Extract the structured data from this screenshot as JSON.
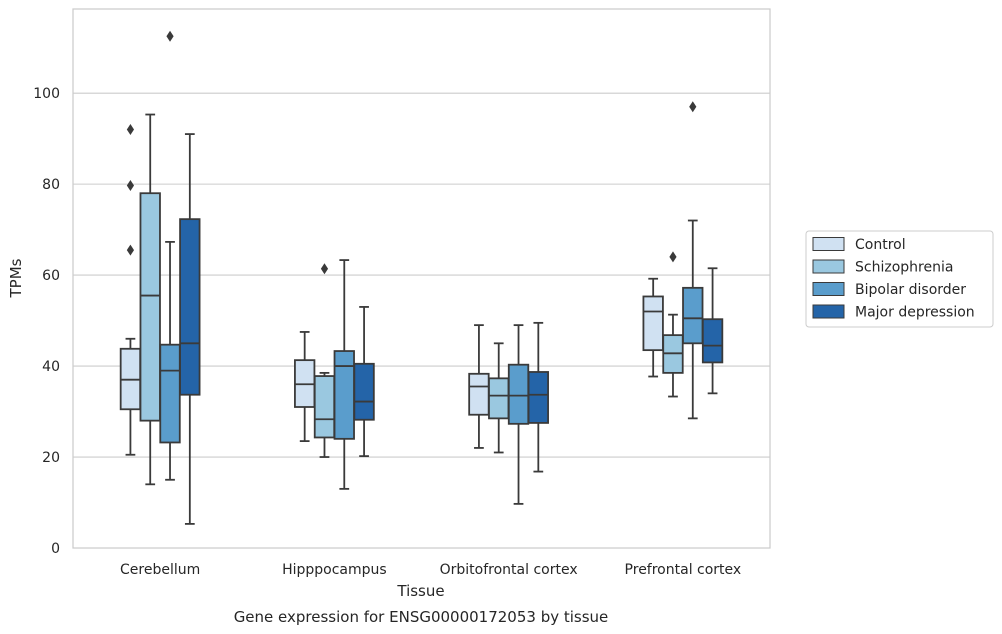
{
  "chart_data": {
    "type": "box",
    "categories": [
      "Cerebellum",
      "Hipppocampus",
      "Orbitofrontal cortex",
      "Prefrontal cortex"
    ],
    "xlabel": "Tissue",
    "ylabel": "TPMs",
    "caption": "Gene expression for ENSG00000172053 by tissue",
    "ylim": [
      0,
      118.5
    ],
    "yticks": [
      0,
      20,
      40,
      60,
      80,
      100
    ],
    "grid": "horizontal",
    "legend_position": "right",
    "series": [
      {
        "name": "Control",
        "color": "#d0e1f2",
        "boxes": [
          {
            "whisker_low": 20.5,
            "q1": 30.5,
            "median": 37.0,
            "q3": 43.8,
            "whisker_high": 46.0,
            "outliers": [
              65.5,
              79.7,
              92.0
            ]
          },
          {
            "whisker_low": 23.5,
            "q1": 31.0,
            "median": 36.0,
            "q3": 41.3,
            "whisker_high": 47.5,
            "outliers": []
          },
          {
            "whisker_low": 22.0,
            "q1": 29.3,
            "median": 35.5,
            "q3": 38.3,
            "whisker_high": 49.0,
            "outliers": []
          },
          {
            "whisker_low": 37.7,
            "q1": 43.5,
            "median": 52.0,
            "q3": 55.3,
            "whisker_high": 59.2,
            "outliers": []
          }
        ]
      },
      {
        "name": "Schizophrenia",
        "color": "#9ac8e0",
        "boxes": [
          {
            "whisker_low": 14.0,
            "q1": 28.0,
            "median": 55.5,
            "q3": 78.0,
            "whisker_high": 95.3,
            "outliers": []
          },
          {
            "whisker_low": 20.0,
            "q1": 24.3,
            "median": 28.3,
            "q3": 37.8,
            "whisker_high": 38.5,
            "outliers": [
              61.4
            ]
          },
          {
            "whisker_low": 21.0,
            "q1": 28.5,
            "median": 33.5,
            "q3": 37.3,
            "whisker_high": 45.0,
            "outliers": []
          },
          {
            "whisker_low": 33.3,
            "q1": 38.5,
            "median": 42.8,
            "q3": 46.8,
            "whisker_high": 51.3,
            "outliers": [
              64.0
            ]
          }
        ]
      },
      {
        "name": "Bipolar disorder",
        "color": "#5a9dcc",
        "boxes": [
          {
            "whisker_low": 15.0,
            "q1": 23.2,
            "median": 39.0,
            "q3": 44.7,
            "whisker_high": 67.3,
            "outliers": [
              112.5
            ]
          },
          {
            "whisker_low": 13.0,
            "q1": 24.0,
            "median": 40.0,
            "q3": 43.3,
            "whisker_high": 63.3,
            "outliers": []
          },
          {
            "whisker_low": 9.7,
            "q1": 27.3,
            "median": 33.5,
            "q3": 40.3,
            "whisker_high": 49.0,
            "outliers": []
          },
          {
            "whisker_low": 28.5,
            "q1": 45.0,
            "median": 50.5,
            "q3": 57.2,
            "whisker_high": 72.0,
            "outliers": [
              97.0
            ]
          }
        ]
      },
      {
        "name": "Major depression",
        "color": "#2464a8",
        "boxes": [
          {
            "whisker_low": 5.3,
            "q1": 33.7,
            "median": 45.0,
            "q3": 72.3,
            "whisker_high": 91.0,
            "outliers": []
          },
          {
            "whisker_low": 20.2,
            "q1": 28.2,
            "median": 32.2,
            "q3": 40.5,
            "whisker_high": 53.0,
            "outliers": []
          },
          {
            "whisker_low": 16.8,
            "q1": 27.5,
            "median": 33.7,
            "q3": 38.7,
            "whisker_high": 49.5,
            "outliers": []
          },
          {
            "whisker_low": 34.0,
            "q1": 40.8,
            "median": 44.5,
            "q3": 50.3,
            "whisker_high": 61.5,
            "outliers": []
          }
        ]
      }
    ]
  }
}
